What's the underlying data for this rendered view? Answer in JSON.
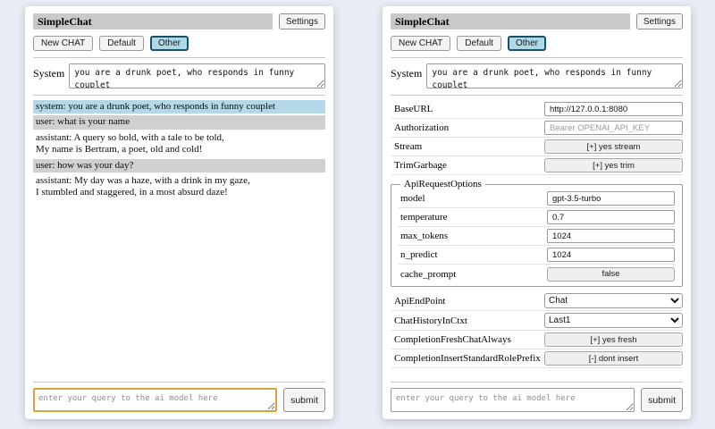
{
  "colors": {
    "page_bg": "#e9ecf4",
    "titlebar_bg": "#c9c9c9",
    "active_tab_bg": "#add8e6",
    "active_tab_border": "#1f4e68",
    "system_msg_bg": "#b4d8e7",
    "user_msg_bg": "#d0d0d0",
    "query_focus_border": "#d8a147"
  },
  "left_panel": {
    "title": "SimpleChat",
    "settings_button": "Settings",
    "chat_buttons": [
      {
        "label": "New CHAT",
        "active": false
      },
      {
        "label": "Default",
        "active": false
      },
      {
        "label": "Other",
        "active": true
      }
    ],
    "system_label": "System",
    "system_value": "you are a drunk poet, who responds in funny couplet",
    "messages": [
      {
        "role": "system",
        "text": "system: you are a drunk poet, who responds in funny couplet"
      },
      {
        "role": "user",
        "text": "user: what is your name"
      },
      {
        "role": "assistant",
        "text": "assistant: A query so bold, with a tale to be told,\nMy name is Bertram, a poet, old and cold!"
      },
      {
        "role": "user",
        "text": "user: how was your day?"
      },
      {
        "role": "assistant",
        "text": "assistant: My day was a haze, with a drink in my gaze,\nI stumbled and staggered, in a most absurd daze!"
      }
    ],
    "query_placeholder": "enter your query to the ai model here",
    "submit_label": "submit"
  },
  "right_panel": {
    "title": "SimpleChat",
    "settings_button": "Settings",
    "chat_buttons": [
      {
        "label": "New CHAT",
        "active": false
      },
      {
        "label": "Default",
        "active": false
      },
      {
        "label": "Other",
        "active": true
      }
    ],
    "system_label": "System",
    "system_value": "you are a drunk poet, who responds in funny couplet",
    "settings_top": [
      {
        "label": "BaseURL",
        "type": "input",
        "value": "http://127.0.0.1:8080"
      },
      {
        "label": "Authorization",
        "type": "input",
        "placeholder": "Bearer OPENAI_API_KEY"
      },
      {
        "label": "Stream",
        "type": "button",
        "value": "[+] yes stream"
      },
      {
        "label": "TrimGarbage",
        "type": "button",
        "value": "[+] yes trim"
      }
    ],
    "fieldset": {
      "legend": "ApiRequestOptions",
      "rows": [
        {
          "label": "model",
          "type": "input",
          "value": "gpt-3.5-turbo"
        },
        {
          "label": "temperature",
          "type": "input",
          "value": "0.7"
        },
        {
          "label": "max_tokens",
          "type": "input",
          "value": "1024"
        },
        {
          "label": "n_predict",
          "type": "input",
          "value": "1024"
        },
        {
          "label": "cache_prompt",
          "type": "button",
          "value": "false"
        }
      ]
    },
    "settings_bottom": [
      {
        "label": "ApiEndPoint",
        "type": "select",
        "value": "Chat"
      },
      {
        "label": "ChatHistoryInCtxt",
        "type": "select",
        "value": "Last1"
      },
      {
        "label": "CompletionFreshChatAlways",
        "type": "button",
        "value": "[+] yes fresh"
      },
      {
        "label": "CompletionInsertStandardRolePrefix",
        "type": "button",
        "value": "[-] dont insert"
      }
    ],
    "query_placeholder": "enter your query to the ai model here",
    "submit_label": "submit"
  }
}
